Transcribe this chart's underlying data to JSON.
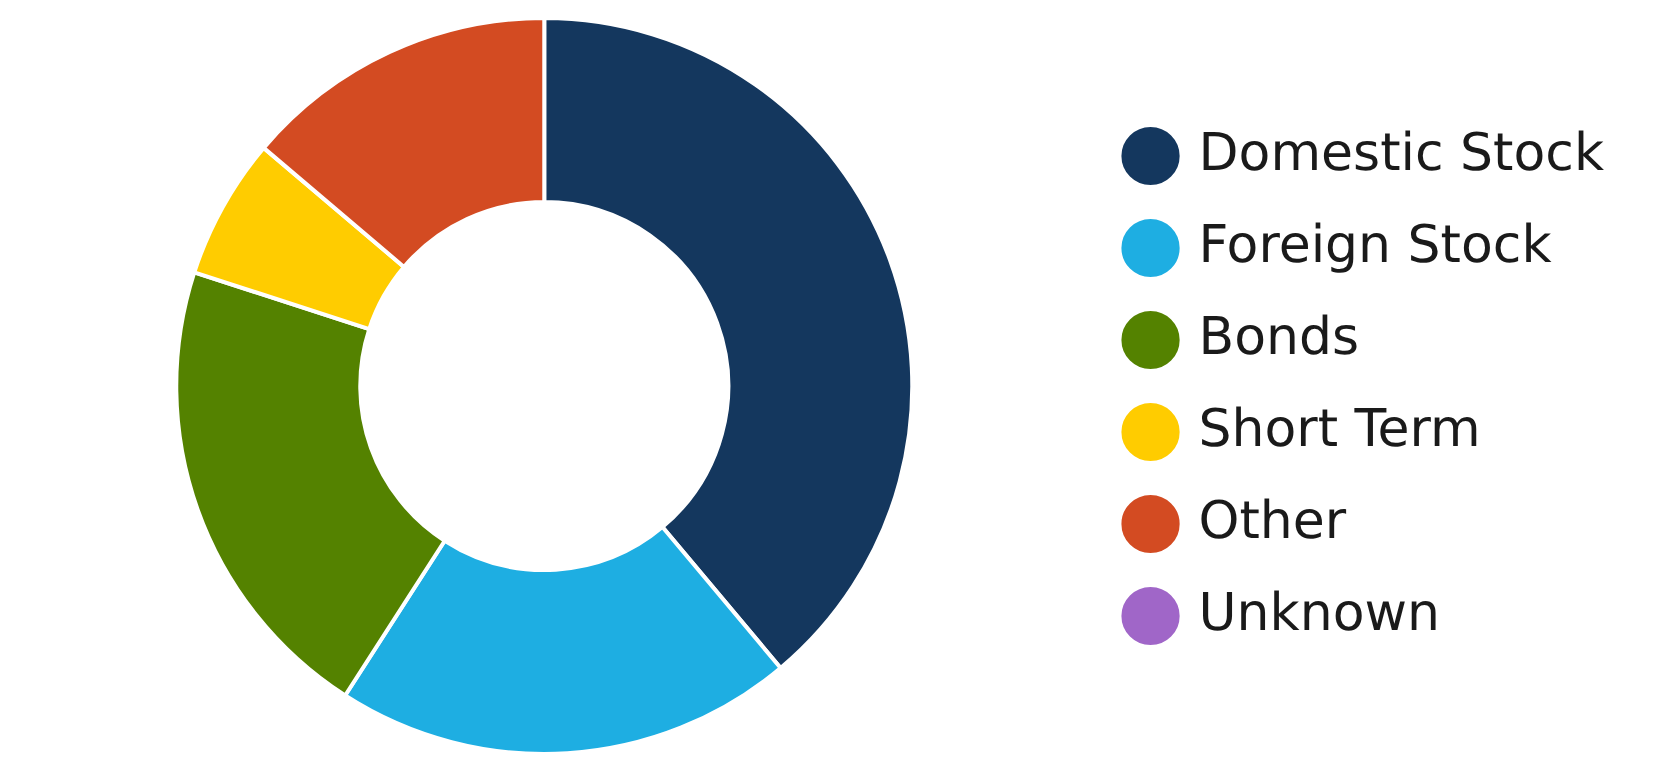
{
  "chart_data": {
    "type": "donut",
    "categories": [
      "Domestic Stock",
      "Foreign Stock",
      "Bonds",
      "Short Term",
      "Other",
      "Unknown"
    ],
    "values": [
      38.9,
      20.2,
      20.9,
      6.2,
      13.8,
      0
    ],
    "colors": [
      "#14375e",
      "#1eaee2",
      "#548200",
      "#ffcc00",
      "#d34b22",
      "#a066c8"
    ],
    "legend": "right"
  }
}
